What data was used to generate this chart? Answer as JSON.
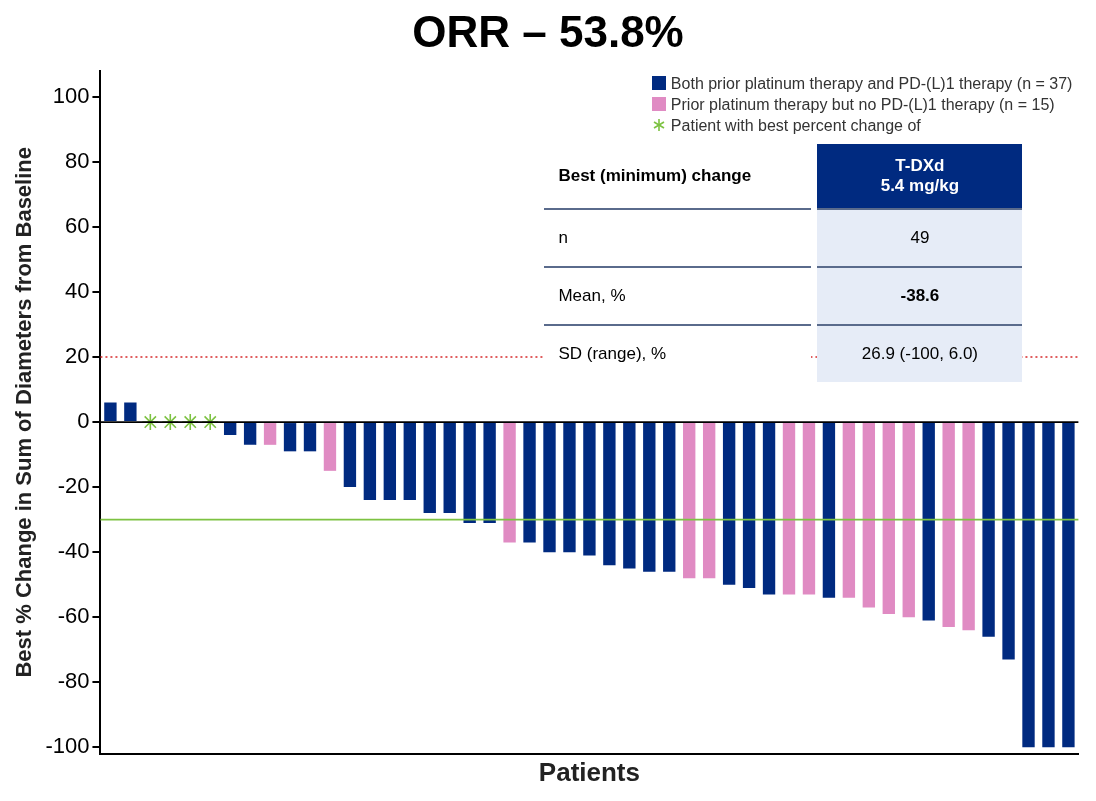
{
  "chart_data": {
    "type": "bar",
    "title": "ORR – 53.8%",
    "xlabel": "Patients",
    "ylabel": "Best % Change in Sum of Diameters from Baseline",
    "categories": [
      null,
      null,
      null,
      null,
      null,
      null,
      null,
      null,
      null,
      null,
      null,
      null,
      null,
      null,
      null,
      null,
      null,
      null,
      null,
      null,
      null,
      null,
      null,
      null,
      null,
      null,
      null,
      null,
      null,
      null,
      null,
      null,
      null,
      null,
      null,
      null,
      null,
      null,
      null,
      null,
      null,
      null,
      null,
      null,
      null,
      null,
      null,
      null,
      null
    ],
    "series": [
      {
        "name": "Both prior platinum therapy and PD-(L)1 therapy (n = 37)",
        "color": "#002a80",
        "values": [
          6,
          6,
          null,
          null,
          null,
          null,
          -4,
          -7,
          null,
          -9,
          -9,
          null,
          -20,
          -24,
          -24,
          -24,
          -28,
          -28,
          -31,
          -31,
          null,
          -37,
          -40,
          -40,
          -41,
          -44,
          -45,
          -46,
          -46,
          null,
          null,
          -50,
          -51,
          -53,
          null,
          null,
          -54,
          null,
          null,
          null,
          null,
          -61,
          null,
          null,
          -66,
          -73,
          -100,
          -100,
          -100
        ]
      },
      {
        "name": "Prior platinum therapy but no PD-(L)1 therapy (n = 15)",
        "color": "#e08bc3",
        "values": [
          null,
          null,
          null,
          null,
          null,
          null,
          null,
          null,
          -7,
          null,
          null,
          -15,
          null,
          null,
          null,
          null,
          null,
          null,
          null,
          null,
          -37,
          null,
          null,
          null,
          null,
          null,
          null,
          null,
          null,
          -48,
          -48,
          null,
          null,
          null,
          -53,
          -53,
          null,
          -54,
          -57,
          -59,
          -60,
          null,
          -63,
          -64,
          null,
          null,
          null,
          null,
          null
        ]
      },
      {
        "name": "Patient with best percent change of",
        "type": "scatter",
        "marker": "cross",
        "color": "#7dc242",
        "values": [
          null,
          null,
          0,
          0,
          0,
          0,
          null,
          null,
          null,
          null,
          null,
          null,
          null,
          null,
          null,
          null,
          null,
          null,
          null,
          null,
          null,
          null,
          null,
          null,
          null,
          null,
          null,
          null,
          null,
          null,
          null,
          null,
          null,
          null,
          null,
          null,
          null,
          null,
          null,
          null,
          null,
          null,
          null,
          null,
          null,
          null,
          null,
          null,
          null
        ]
      }
    ],
    "ylim": [
      -102,
      108
    ],
    "yticks": [
      -100,
      -80,
      -60,
      -40,
      -20,
      0,
      20,
      40,
      60,
      80,
      100
    ],
    "tick_labels": "y",
    "legend": "top right",
    "ref_lines": [
      {
        "axis": "y",
        "value": 20,
        "color": "#d62728",
        "line_style": "dotted"
      },
      {
        "axis": "y",
        "value": -30,
        "color": "#7dc242",
        "line_style": "solid"
      },
      {
        "axis": "y",
        "value": 0,
        "color": "#000000",
        "line_style": "solid"
      }
    ],
    "annotations": [
      "Best (minimum) change",
      "T-DXd\n5.4 mg/kg",
      "n",
      "49",
      "Mean, %",
      "-38.6",
      "SD (range), %",
      "26.9 (-100, 6.0)"
    ]
  }
}
